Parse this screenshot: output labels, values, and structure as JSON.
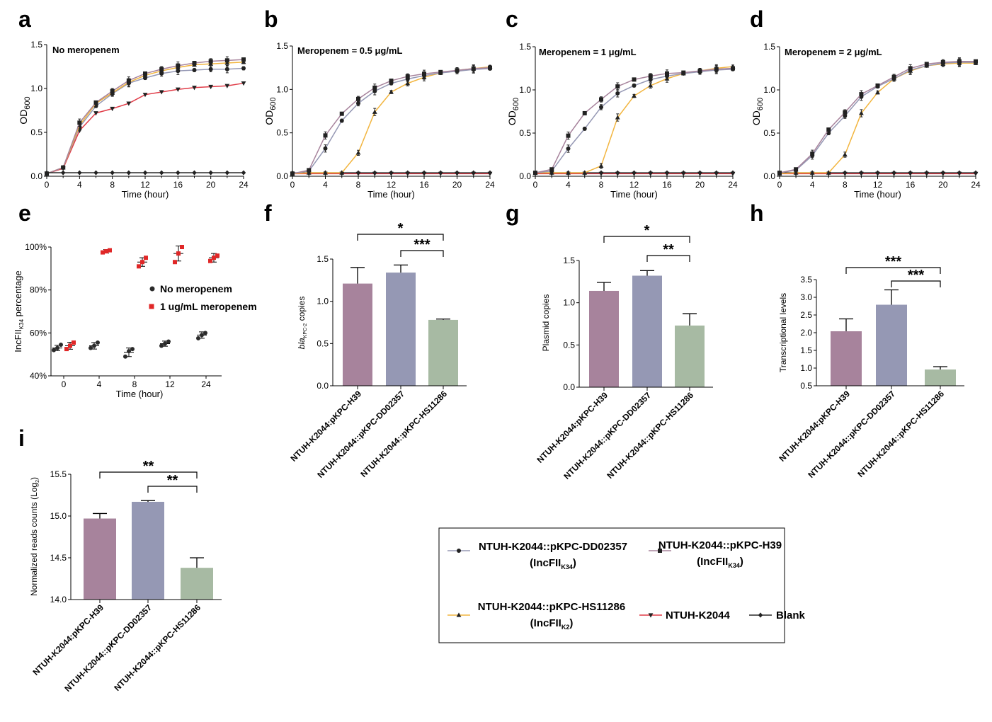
{
  "colors": {
    "H39": "#a7839c",
    "DD02357": "#9598b4",
    "HS11286": "#f2b53f",
    "K2044": "#e03b47",
    "Blank": "#2a2a2a",
    "bar_H39": "#a7839c",
    "bar_DD02357": "#9598b4",
    "bar_HS11286": "#a7baa3",
    "red_points": "#e02727"
  },
  "legend": {
    "items": [
      {
        "key": "DD02357",
        "line1": "NTUH-K2044::pKPC-DD02357",
        "line2": "(IncFII",
        "sub": "K34",
        "close": ")",
        "marker": "circle"
      },
      {
        "key": "H39",
        "line1": "NTUH-K2044::pKPC-H39",
        "line2": "(IncFII",
        "sub": "K34",
        "close": ")",
        "marker": "square"
      },
      {
        "key": "HS11286",
        "line1": "NTUH-K2044::pKPC-HS11286",
        "line2": "(IncFII",
        "sub": "K2",
        "close": ")",
        "marker": "triangle-up"
      },
      {
        "key": "K2044",
        "line1": "NTUH-K2044",
        "line2": "",
        "sub": "",
        "close": "",
        "marker": "triangle-down"
      },
      {
        "key": "Blank",
        "line1": "Blank",
        "line2": "",
        "sub": "",
        "close": "",
        "marker": "diamond"
      }
    ]
  },
  "chart_data": [
    {
      "id": "a",
      "type": "line",
      "panel_label": "a",
      "annotation": "No meropenem",
      "xlabel": "Time (hour)",
      "ylabel": "OD",
      "ylabel_sub": "600",
      "xlim": [
        0,
        24
      ],
      "ylim": [
        0,
        1.5
      ],
      "xticks": [
        0,
        4,
        8,
        12,
        16,
        20,
        24
      ],
      "yticks": [
        0.0,
        0.5,
        1.0,
        1.5
      ],
      "xtick_labels": [
        "0",
        "4",
        "8",
        "12",
        "16",
        "20",
        "24"
      ],
      "ytick_labels": [
        "0.0",
        "0.5",
        "1.0",
        "1.5"
      ],
      "x": [
        0,
        2,
        4,
        6,
        8,
        10,
        12,
        14,
        16,
        18,
        20,
        22,
        24
      ],
      "series": [
        {
          "key": "K2044",
          "values": [
            0.03,
            0.09,
            0.52,
            0.72,
            0.77,
            0.83,
            0.93,
            0.96,
            0.99,
            1.01,
            1.02,
            1.03,
            1.06
          ]
        },
        {
          "key": "DD02357",
          "values": [
            0.03,
            0.1,
            0.56,
            0.8,
            0.94,
            1.06,
            1.12,
            1.17,
            1.2,
            1.21,
            1.22,
            1.22,
            1.23
          ]
        },
        {
          "key": "HS11286",
          "values": [
            0.03,
            0.1,
            0.58,
            0.83,
            0.95,
            1.07,
            1.15,
            1.2,
            1.24,
            1.27,
            1.28,
            1.29,
            1.3
          ]
        },
        {
          "key": "H39",
          "values": [
            0.03,
            0.1,
            0.61,
            0.84,
            0.97,
            1.09,
            1.17,
            1.22,
            1.26,
            1.29,
            1.31,
            1.32,
            1.33
          ]
        },
        {
          "key": "Blank",
          "values": [
            0.04,
            0.04,
            0.04,
            0.04,
            0.04,
            0.04,
            0.04,
            0.04,
            0.04,
            0.04,
            0.04,
            0.04,
            0.04
          ]
        }
      ]
    },
    {
      "id": "b",
      "type": "line",
      "panel_label": "b",
      "annotation": "Meropenem = 0.5 μg/mL",
      "xlabel": "Time (hour)",
      "ylabel": "OD",
      "ylabel_sub": "600",
      "xlim": [
        0,
        24
      ],
      "ylim": [
        0,
        1.5
      ],
      "xticks": [
        0,
        4,
        8,
        12,
        16,
        20,
        24
      ],
      "yticks": [
        0.0,
        0.5,
        1.0,
        1.5
      ],
      "xtick_labels": [
        "0",
        "4",
        "8",
        "12",
        "16",
        "20",
        "24"
      ],
      "ytick_labels": [
        "0.0",
        "0.5",
        "1.0",
        "1.5"
      ],
      "x": [
        0,
        2,
        4,
        6,
        8,
        10,
        12,
        14,
        16,
        18,
        20,
        22,
        24
      ],
      "series": [
        {
          "key": "K2044",
          "values": [
            0.03,
            0.03,
            0.03,
            0.03,
            0.03,
            0.03,
            0.03,
            0.03,
            0.03,
            0.03,
            0.03,
            0.03,
            0.03
          ]
        },
        {
          "key": "Blank",
          "values": [
            0.04,
            0.04,
            0.04,
            0.04,
            0.04,
            0.04,
            0.04,
            0.04,
            0.04,
            0.04,
            0.04,
            0.04,
            0.04
          ]
        },
        {
          "key": "HS11286",
          "values": [
            0.03,
            0.04,
            0.04,
            0.04,
            0.27,
            0.74,
            0.97,
            1.07,
            1.14,
            1.19,
            1.22,
            1.24,
            1.26
          ]
        },
        {
          "key": "DD02357",
          "values": [
            0.03,
            0.06,
            0.32,
            0.64,
            0.84,
            0.98,
            1.07,
            1.12,
            1.16,
            1.19,
            1.21,
            1.23,
            1.24
          ]
        },
        {
          "key": "H39",
          "values": [
            0.03,
            0.07,
            0.47,
            0.72,
            0.89,
            1.02,
            1.1,
            1.15,
            1.18,
            1.2,
            1.22,
            1.24,
            1.25
          ]
        }
      ]
    },
    {
      "id": "c",
      "type": "line",
      "panel_label": "c",
      "annotation": "Meropenem = 1 μg/mL",
      "xlabel": "Time (hour)",
      "ylabel": "OD",
      "ylabel_sub": "600",
      "xlim": [
        0,
        24
      ],
      "ylim": [
        0,
        1.5
      ],
      "xticks": [
        0,
        4,
        8,
        12,
        16,
        20,
        24
      ],
      "yticks": [
        0.0,
        0.5,
        1.0,
        1.5
      ],
      "xtick_labels": [
        "0",
        "4",
        "8",
        "12",
        "16",
        "20",
        "24"
      ],
      "ytick_labels": [
        "0.0",
        "0.5",
        "1.0",
        "1.5"
      ],
      "x": [
        0,
        2,
        4,
        6,
        8,
        10,
        12,
        14,
        16,
        18,
        20,
        22,
        24
      ],
      "series": [
        {
          "key": "K2044",
          "values": [
            0.03,
            0.03,
            0.03,
            0.03,
            0.03,
            0.03,
            0.03,
            0.03,
            0.03,
            0.03,
            0.03,
            0.03,
            0.03
          ]
        },
        {
          "key": "Blank",
          "values": [
            0.04,
            0.04,
            0.04,
            0.04,
            0.04,
            0.04,
            0.04,
            0.04,
            0.04,
            0.04,
            0.04,
            0.04,
            0.04
          ]
        },
        {
          "key": "HS11286",
          "values": [
            0.04,
            0.04,
            0.04,
            0.04,
            0.12,
            0.68,
            0.93,
            1.05,
            1.13,
            1.19,
            1.22,
            1.25,
            1.27
          ]
        },
        {
          "key": "DD02357",
          "values": [
            0.04,
            0.06,
            0.32,
            0.55,
            0.8,
            0.96,
            1.05,
            1.12,
            1.16,
            1.19,
            1.21,
            1.23,
            1.24
          ]
        },
        {
          "key": "H39",
          "values": [
            0.04,
            0.08,
            0.47,
            0.73,
            0.89,
            1.04,
            1.12,
            1.16,
            1.19,
            1.2,
            1.22,
            1.24,
            1.25
          ]
        }
      ]
    },
    {
      "id": "d",
      "type": "line",
      "panel_label": "d",
      "annotation": "Meropenem = 2 μg/mL",
      "xlabel": "Time (hour)",
      "ylabel": "OD",
      "ylabel_sub": "600",
      "xlim": [
        0,
        24
      ],
      "ylim": [
        0,
        1.5
      ],
      "xticks": [
        0,
        4,
        8,
        12,
        16,
        20,
        24
      ],
      "yticks": [
        0.0,
        0.5,
        1.0,
        1.5
      ],
      "xtick_labels": [
        "0",
        "4",
        "8",
        "12",
        "16",
        "20",
        "24"
      ],
      "ytick_labels": [
        "0.0",
        "0.5",
        "1.0",
        "1.5"
      ],
      "x": [
        0,
        2,
        4,
        6,
        8,
        10,
        12,
        14,
        16,
        18,
        20,
        22,
        24
      ],
      "series": [
        {
          "key": "K2044",
          "values": [
            0.03,
            0.03,
            0.03,
            0.03,
            0.03,
            0.03,
            0.03,
            0.03,
            0.03,
            0.03,
            0.03,
            0.03,
            0.03
          ]
        },
        {
          "key": "Blank",
          "values": [
            0.04,
            0.04,
            0.04,
            0.04,
            0.04,
            0.04,
            0.04,
            0.04,
            0.04,
            0.04,
            0.04,
            0.04,
            0.04
          ]
        },
        {
          "key": "HS11286",
          "values": [
            0.03,
            0.04,
            0.04,
            0.04,
            0.25,
            0.73,
            0.97,
            1.13,
            1.22,
            1.28,
            1.3,
            1.31,
            1.31
          ]
        },
        {
          "key": "DD02357",
          "values": [
            0.04,
            0.07,
            0.24,
            0.5,
            0.7,
            0.92,
            1.04,
            1.13,
            1.23,
            1.28,
            1.31,
            1.32,
            1.32
          ]
        },
        {
          "key": "H39",
          "values": [
            0.04,
            0.08,
            0.26,
            0.54,
            0.74,
            0.95,
            1.05,
            1.15,
            1.25,
            1.3,
            1.32,
            1.33,
            1.33
          ]
        }
      ]
    },
    {
      "id": "e",
      "type": "scatter",
      "panel_label": "e",
      "xlabel": "Time (hour)",
      "ylabel": "IncFII",
      "ylabel_sub": "K34",
      "ylabel_tail": " percentage",
      "categories": [
        "0",
        "4",
        "8",
        "12",
        "24"
      ],
      "ylim": [
        40,
        100
      ],
      "yticks": [
        40,
        60,
        80,
        100
      ],
      "ytick_labels": [
        "40%",
        "60%",
        "80%",
        "100%"
      ],
      "series": [
        {
          "name": "No meropenem",
          "color_key": "Blank",
          "means": [
            53,
            54,
            51,
            55,
            59
          ],
          "sd": [
            1.2,
            1.5,
            2.0,
            1.2,
            1.5
          ],
          "points": [
            [
              52,
              53,
              54.5
            ],
            [
              53,
              54,
              55.5
            ],
            [
              49,
              51.5,
              52.5
            ],
            [
              54,
              55,
              56
            ],
            [
              57.5,
              59,
              60
            ]
          ]
        },
        {
          "name": "1 ug/mL meropenem",
          "color_key": "red_points",
          "means": [
            54,
            98,
            93,
            97,
            95
          ],
          "sd": [
            1.6,
            0.8,
            2.0,
            3.5,
            2.0
          ],
          "points": [
            [
              52.5,
              54,
              55.5
            ],
            [
              97.5,
              98,
              98.5
            ],
            [
              91,
              93,
              95
            ],
            [
              93,
              97,
              100
            ],
            [
              93.5,
              95,
              96
            ]
          ]
        }
      ]
    },
    {
      "id": "f",
      "type": "bar",
      "panel_label": "f",
      "ylabel": "bla",
      "ylabel_sub": "KPC-2",
      "ylabel_tail": " copies",
      "categories": [
        "NTUH-K2044:pKPC-H39",
        "NTUH-K2044::pKPC-DD02357",
        "NTUH-K2044::pKPC-HS11286"
      ],
      "values": [
        1.21,
        1.34,
        0.78
      ],
      "errors": [
        0.19,
        0.09,
        0.01
      ],
      "ylim": [
        0,
        1.5
      ],
      "yticks": [
        0.0,
        0.5,
        1.0,
        1.5
      ],
      "ytick_labels": [
        "0.0",
        "0.5",
        "1.0",
        "1.5"
      ],
      "sig": [
        {
          "from": 0,
          "to": 2,
          "label": "*"
        },
        {
          "from": 1,
          "to": 2,
          "label": "***"
        }
      ]
    },
    {
      "id": "g",
      "type": "bar",
      "panel_label": "g",
      "ylabel": "Plasmid copies",
      "ylabel_sub": "",
      "ylabel_tail": "",
      "categories": [
        "NTUH-K2044:pKPC-H39",
        "NTUH-K2044::pKPC-DD02357",
        "NTUH-K2044::pKPC-HS11286"
      ],
      "values": [
        1.14,
        1.32,
        0.73
      ],
      "errors": [
        0.1,
        0.06,
        0.14
      ],
      "ylim": [
        0,
        1.5
      ],
      "yticks": [
        0.0,
        0.5,
        1.0,
        1.5
      ],
      "ytick_labels": [
        "0.0",
        "0.5",
        "1.0",
        "1.5"
      ],
      "sig": [
        {
          "from": 0,
          "to": 2,
          "label": "*"
        },
        {
          "from": 1,
          "to": 2,
          "label": "**"
        }
      ]
    },
    {
      "id": "h",
      "type": "bar",
      "panel_label": "h",
      "ylabel": "Transcriptional levels",
      "ylabel_sub": "",
      "ylabel_tail": "",
      "categories": [
        "NTUH-K2044:pKPC-H39",
        "NTUH-K2044::pKPC-DD02357",
        "NTUH-K2044::pKPC-HS11286"
      ],
      "values": [
        2.04,
        2.79,
        0.96
      ],
      "errors": [
        0.35,
        0.42,
        0.08
      ],
      "ylim": [
        0.5,
        3.5
      ],
      "yticks": [
        0.5,
        1.0,
        1.5,
        2.0,
        2.5,
        3.0,
        3.5
      ],
      "ytick_labels": [
        "0.5",
        "1.0",
        "1.5",
        "2.0",
        "2.5",
        "3.0",
        "3.5"
      ],
      "sig": [
        {
          "from": 0,
          "to": 2,
          "label": "***"
        },
        {
          "from": 1,
          "to": 2,
          "label": "***"
        }
      ]
    },
    {
      "id": "i",
      "type": "bar",
      "panel_label": "i",
      "ylabel": "Normalized reads counts (Log",
      "ylabel_sub": "2",
      "ylabel_tail": ")",
      "categories": [
        "NTUH-K2044:pKPC-H39",
        "NTUH-K2044::pKPC-DD02357",
        "NTUH-K2044::pKPC-HS11286"
      ],
      "values": [
        14.97,
        15.17,
        14.38
      ],
      "errors": [
        0.06,
        0.015,
        0.12
      ],
      "ylim": [
        14.0,
        15.5
      ],
      "yticks": [
        14.0,
        14.5,
        15.0,
        15.5
      ],
      "ytick_labels": [
        "14.0",
        "14.5",
        "15.0",
        "15.5"
      ],
      "sig": [
        {
          "from": 0,
          "to": 2,
          "label": "**"
        },
        {
          "from": 1,
          "to": 2,
          "label": "**"
        }
      ]
    }
  ]
}
